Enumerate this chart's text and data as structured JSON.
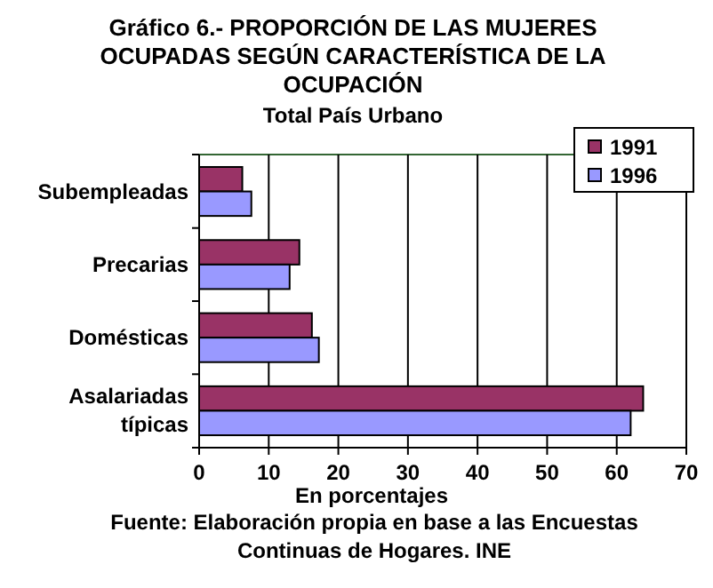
{
  "chart_data": {
    "type": "bar",
    "orientation": "horizontal",
    "title": "Gráfico 6.- PROPORCIÓN DE LAS MUJERES OCUPADAS SEGÚN CARACTERÍSTICA DE LA OCUPACIÓN",
    "subtitle": "Total País Urbano",
    "xlabel": "En porcentajes",
    "annotations": [
      "Fuente: Elaboración propia en base a las Encuestas Continuas de Hogares. INE"
    ],
    "categories": [
      "Subempleadas",
      "Precarias",
      "Domésticas",
      "Asalariadas típicas"
    ],
    "series": [
      {
        "name": "1991",
        "color": "#993366",
        "values": [
          6.2,
          14.4,
          16.2,
          63.8
        ]
      },
      {
        "name": "1996",
        "color": "#9999ff",
        "values": [
          7.5,
          13.0,
          17.2,
          62.0
        ]
      }
    ],
    "xlim": [
      0,
      70
    ],
    "xticks": [
      0,
      10,
      20,
      30,
      40,
      50,
      60,
      70
    ],
    "grid": "x",
    "legend": "top right"
  }
}
